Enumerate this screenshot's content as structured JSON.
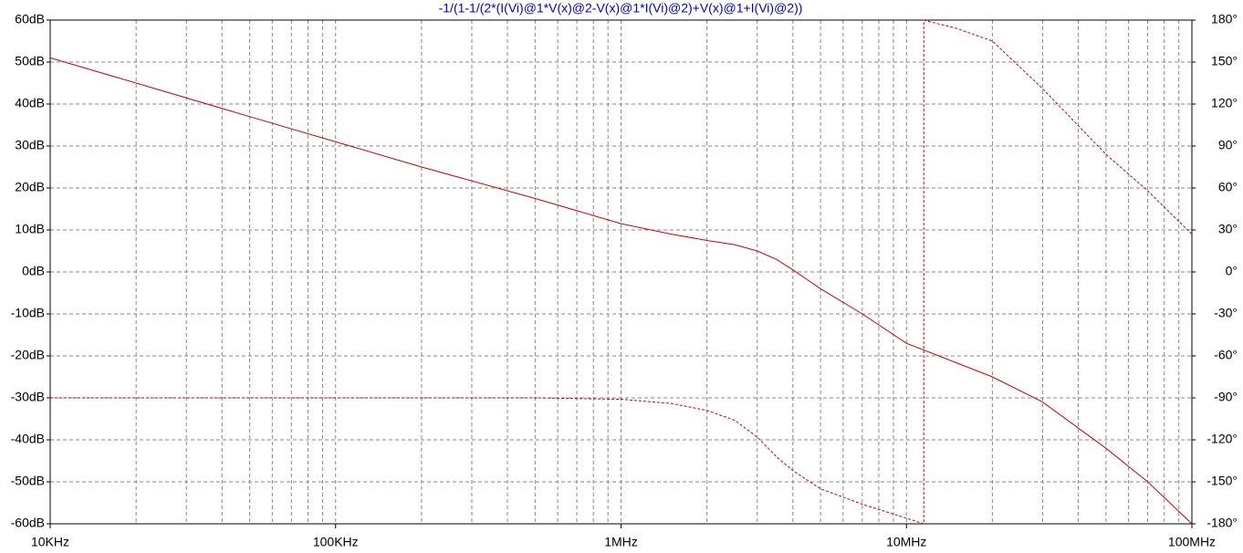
{
  "chart_data": {
    "type": "line",
    "title": "-1/(1-1/(2*(I(Vi)@1*V(x)@2-V(x)@1*I(Vi)@2)+V(x)@1+I(Vi)@2))",
    "xscale": "log",
    "xlim": [
      10000,
      100000000
    ],
    "xticks": [
      {
        "value": 10000,
        "label": "10KHz"
      },
      {
        "value": 100000,
        "label": "100KHz"
      },
      {
        "value": 1000000,
        "label": "1MHz"
      },
      {
        "value": 10000000,
        "label": "10MHz"
      },
      {
        "value": 100000000,
        "label": "100MHz"
      }
    ],
    "xminorticks": [
      20000,
      30000,
      40000,
      50000,
      60000,
      70000,
      80000,
      90000,
      200000,
      300000,
      400000,
      500000,
      600000,
      700000,
      800000,
      900000,
      2000000,
      3000000,
      4000000,
      5000000,
      6000000,
      7000000,
      8000000,
      9000000,
      20000000,
      30000000,
      40000000,
      50000000,
      60000000,
      70000000,
      80000000,
      90000000
    ],
    "ylim": [
      -60,
      60
    ],
    "yticks": [
      {
        "value": 60,
        "label": "60dB"
      },
      {
        "value": 50,
        "label": "50dB"
      },
      {
        "value": 40,
        "label": "40dB"
      },
      {
        "value": 30,
        "label": "30dB"
      },
      {
        "value": 20,
        "label": "20dB"
      },
      {
        "value": 10,
        "label": "10dB"
      },
      {
        "value": 0,
        "label": "0dB"
      },
      {
        "value": -10,
        "label": "-10dB"
      },
      {
        "value": -20,
        "label": "-20dB"
      },
      {
        "value": -30,
        "label": "-30dB"
      },
      {
        "value": -40,
        "label": "-40dB"
      },
      {
        "value": -50,
        "label": "-50dB"
      },
      {
        "value": -60,
        "label": "-60dB"
      }
    ],
    "y2lim": [
      -180,
      180
    ],
    "y2ticks": [
      {
        "value": 180,
        "label": "180°"
      },
      {
        "value": 150,
        "label": "150°"
      },
      {
        "value": 120,
        "label": "120°"
      },
      {
        "value": 90,
        "label": "90°"
      },
      {
        "value": 60,
        "label": "60°"
      },
      {
        "value": 30,
        "label": "30°"
      },
      {
        "value": 0,
        "label": "0°"
      },
      {
        "value": -30,
        "label": "-30°"
      },
      {
        "value": -60,
        "label": "-60°"
      },
      {
        "value": -90,
        "label": "-90°"
      },
      {
        "value": -120,
        "label": "-120°"
      },
      {
        "value": -150,
        "label": "-150°"
      },
      {
        "value": -180,
        "label": "-180°"
      }
    ],
    "grid": true,
    "series": [
      {
        "color": "#cc0000",
        "dash": false,
        "x": [
          10000,
          20000,
          50000,
          100000,
          200000,
          500000,
          1000000,
          1500000,
          2000000,
          2500000,
          3000000,
          3500000,
          4000000,
          5000000,
          7000000,
          10000000,
          20000000,
          30000000,
          50000000,
          70000000,
          100000000
        ],
        "values": [
          51,
          45,
          37,
          31,
          25,
          17.5,
          11.5,
          9,
          7.5,
          6.5,
          5,
          3,
          0.5,
          -4,
          -10,
          -17,
          -25,
          -31,
          -42,
          -50,
          -60
        ]
      },
      {
        "color": "#cc0000",
        "dash": true,
        "axis": "y2",
        "x": [
          10000,
          100000,
          500000,
          1000000,
          1500000,
          2000000,
          2500000,
          3000000,
          3500000,
          4000000,
          5000000,
          7000000,
          10000000,
          11500000,
          11500000,
          15000000,
          20000000,
          30000000,
          50000000,
          70000000,
          100000000
        ],
        "values": [
          -90,
          -90,
          -90,
          -91,
          -94,
          -99,
          -106,
          -118,
          -132,
          -142,
          -155,
          -166,
          -176,
          -180,
          180,
          174,
          165,
          131,
          84,
          58,
          27
        ]
      }
    ]
  }
}
